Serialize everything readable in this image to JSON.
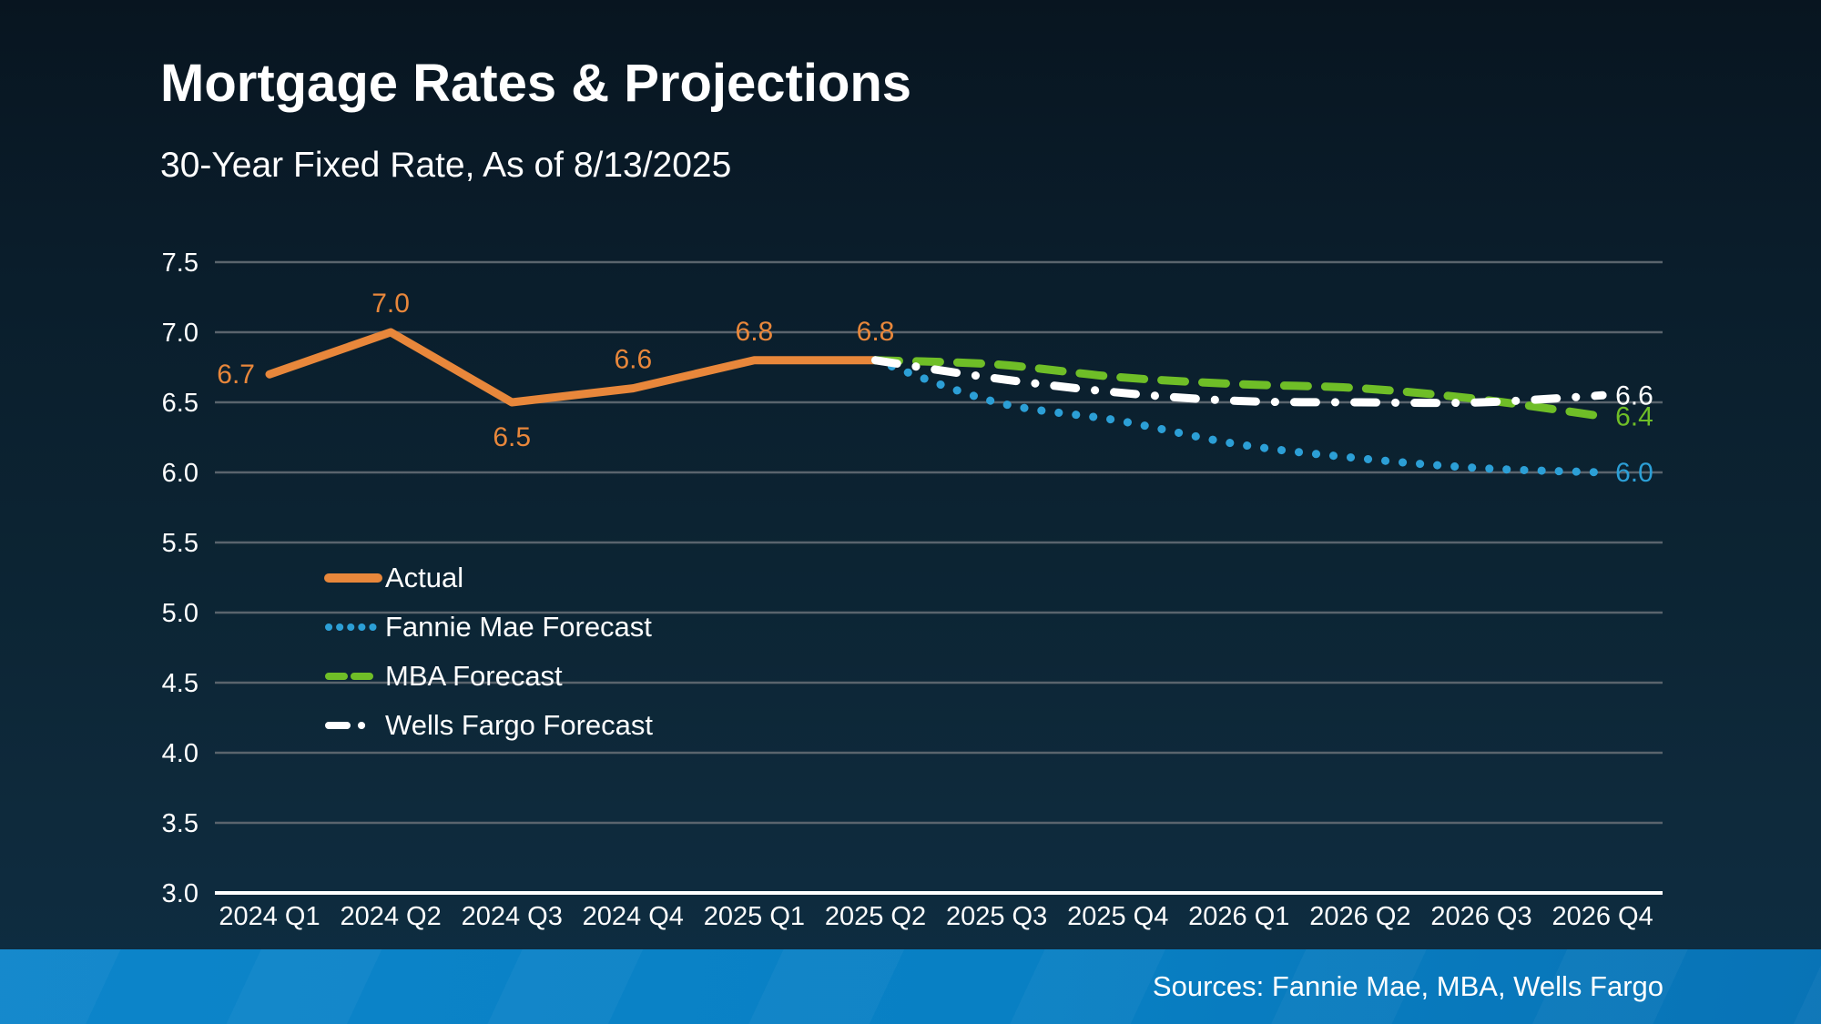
{
  "header": {
    "title": "Mortgage Rates & Projections",
    "subtitle": "30-Year Fixed Rate, As of 8/13/2025"
  },
  "footer": {
    "sources": "Sources: Fannie Mae, MBA, Wells Fargo"
  },
  "legend": {
    "items": [
      {
        "label": "Actual"
      },
      {
        "label": "Fannie Mae Forecast"
      },
      {
        "label": "MBA Forecast"
      },
      {
        "label": "Wells Fargo Forecast"
      }
    ]
  },
  "colors": {
    "background_top": "#081520",
    "background_bottom": "#0d2d42",
    "gridline": "#5a646d",
    "axis_line": "#ffffff",
    "text": "#ffffff",
    "actual": "#e8873b",
    "fannie_mae": "#2c9fd6",
    "mba": "#6fbe27",
    "wells_fargo": "#ffffff",
    "footer_bar": "#0880c4"
  },
  "chart_data": {
    "type": "line",
    "title": "Mortgage Rates & Projections",
    "subtitle": "30-Year Fixed Rate, As of 8/13/2025",
    "categories": [
      "2024 Q1",
      "2024 Q2",
      "2024 Q3",
      "2024 Q4",
      "2025 Q1",
      "2025 Q2",
      "2025 Q3",
      "2025 Q4",
      "2026 Q1",
      "2026 Q2",
      "2026 Q3",
      "2026 Q4"
    ],
    "xlabel": "",
    "ylabel": "",
    "ylim": [
      3.0,
      7.5
    ],
    "ytick_step": 0.5,
    "yticks": [
      "7.5",
      "7.0",
      "6.5",
      "6.0",
      "5.5",
      "5.0",
      "4.5",
      "4.0",
      "3.5",
      "3.0"
    ],
    "grid": "horizontal",
    "legend_position": "inside-left-middle",
    "series": [
      {
        "name": "Actual",
        "color": "#e8873b",
        "style": "solid",
        "values": [
          6.7,
          7.0,
          6.5,
          6.6,
          6.8,
          6.8,
          null,
          null,
          null,
          null,
          null,
          null
        ],
        "point_labels": [
          "6.7",
          "7.0",
          "6.5",
          "6.6",
          "6.8",
          "6.8"
        ],
        "label_placement": [
          "left",
          "above",
          "below",
          "above",
          "above",
          "above"
        ]
      },
      {
        "name": "Fannie Mae Forecast",
        "color": "#2c9fd6",
        "style": "dotted",
        "values": [
          null,
          null,
          null,
          null,
          null,
          6.8,
          6.5,
          6.37,
          6.2,
          6.1,
          6.03,
          6.0
        ],
        "end_label": "6.0"
      },
      {
        "name": "MBA Forecast",
        "color": "#6fbe27",
        "style": "dashed",
        "values": [
          null,
          null,
          null,
          null,
          null,
          6.8,
          6.77,
          6.68,
          6.63,
          6.6,
          6.52,
          6.4
        ],
        "end_label": "6.4"
      },
      {
        "name": "Wells Fargo Forecast",
        "color": "#ffffff",
        "style": "dashdot",
        "values": [
          null,
          null,
          null,
          null,
          null,
          6.8,
          6.67,
          6.57,
          6.51,
          6.5,
          6.5,
          6.55
        ],
        "end_label": "6.6"
      }
    ]
  }
}
